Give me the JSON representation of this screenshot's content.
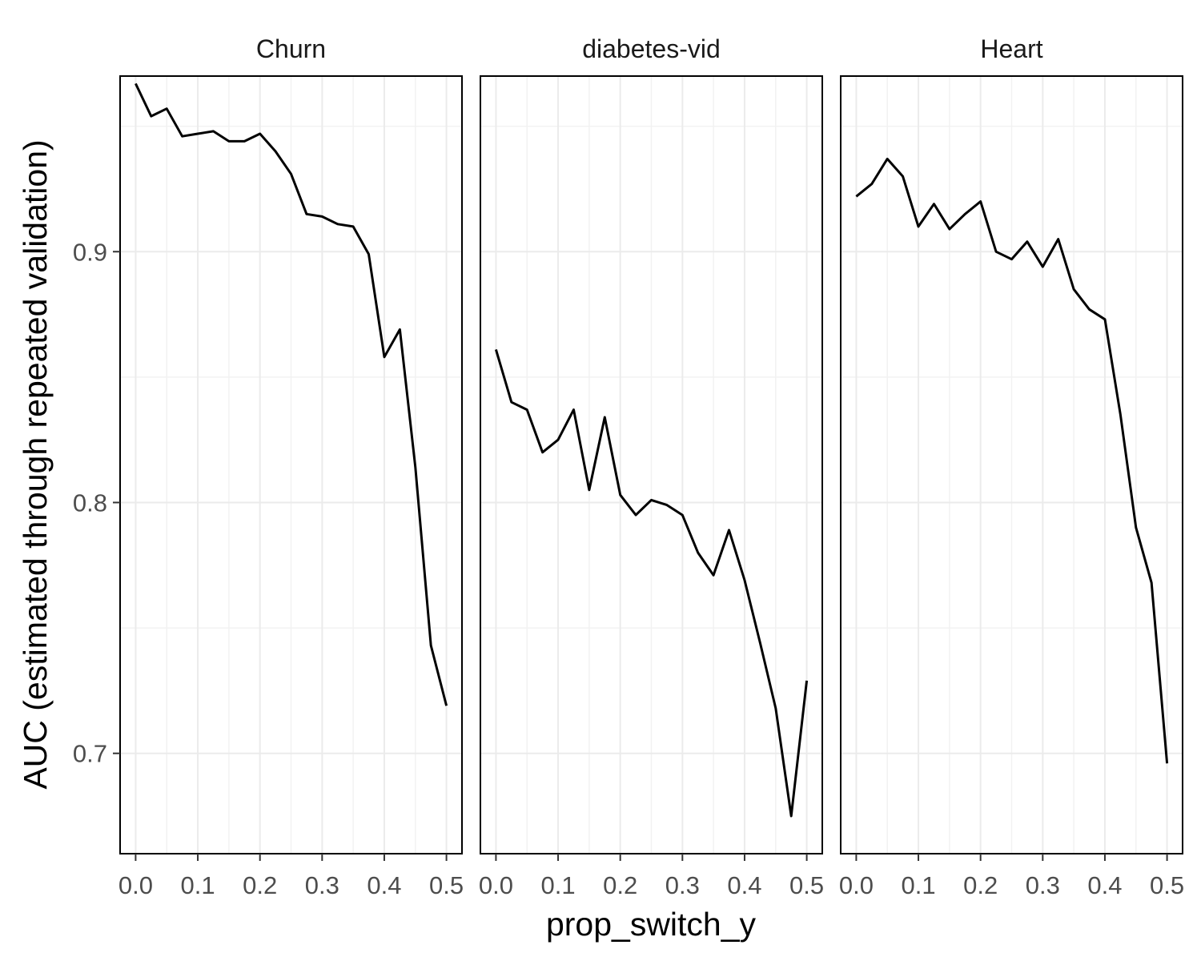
{
  "chart_data": {
    "type": "line",
    "layout": "facet",
    "xlabel": "prop_switch_y",
    "ylabel": "AUC (estimated through repeated validation)",
    "xlim": [
      -0.025,
      0.525
    ],
    "ylim": [
      0.66,
      0.97
    ],
    "x_ticks": [
      0.0,
      0.1,
      0.2,
      0.3,
      0.4,
      0.5
    ],
    "x_tick_labels": [
      "0.0",
      "0.1",
      "0.2",
      "0.3",
      "0.4",
      "0.5"
    ],
    "y_ticks": [
      0.7,
      0.8,
      0.9
    ],
    "y_tick_labels": [
      "0.7",
      "0.8",
      "0.9"
    ],
    "grid": true,
    "line_color": "#000000",
    "x": [
      0.0,
      0.025,
      0.05,
      0.075,
      0.1,
      0.125,
      0.15,
      0.175,
      0.2,
      0.225,
      0.25,
      0.275,
      0.3,
      0.325,
      0.35,
      0.375,
      0.4,
      0.425,
      0.45,
      0.475,
      0.5
    ],
    "panels": [
      {
        "name": "Churn",
        "values": [
          0.967,
          0.954,
          0.957,
          0.946,
          0.947,
          0.948,
          0.944,
          0.944,
          0.947,
          0.94,
          0.931,
          0.915,
          0.914,
          0.911,
          0.91,
          0.899,
          0.858,
          0.869,
          0.814,
          0.743,
          0.719
        ]
      },
      {
        "name": "diabetes-vid",
        "values": [
          0.861,
          0.84,
          0.837,
          0.82,
          0.825,
          0.837,
          0.805,
          0.834,
          0.803,
          0.795,
          0.801,
          0.799,
          0.795,
          0.78,
          0.771,
          0.789,
          0.769,
          0.744,
          0.718,
          0.675,
          0.729
        ]
      },
      {
        "name": "Heart",
        "values": [
          0.922,
          0.927,
          0.937,
          0.93,
          0.91,
          0.919,
          0.909,
          0.915,
          0.92,
          0.9,
          0.897,
          0.904,
          0.894,
          0.905,
          0.885,
          0.877,
          0.873,
          0.835,
          0.79,
          0.768,
          0.696
        ]
      }
    ]
  }
}
